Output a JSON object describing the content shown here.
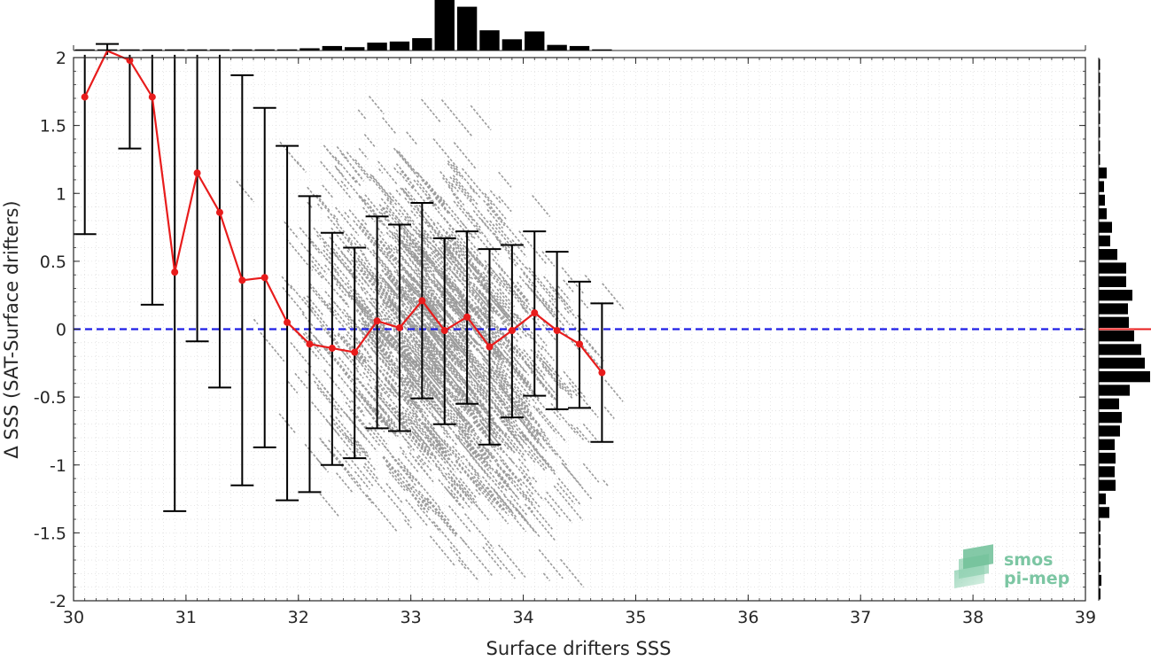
{
  "chart_data": {
    "type": "scatter",
    "xlabel": "Surface drifters SSS",
    "ylabel": "Δ SSS (SAT-Surface drifters)",
    "xlim": [
      30,
      39
    ],
    "ylim": [
      -2,
      2
    ],
    "xticks": [
      "30",
      "31",
      "32",
      "33",
      "34",
      "35",
      "36",
      "37",
      "38",
      "39"
    ],
    "yticks": [
      "-2",
      "-1.5",
      "-1",
      "-0.5",
      "0",
      "0.5",
      "1",
      "1.5",
      "2"
    ],
    "zero_line": {
      "y": 0,
      "color": "#1f1fe6",
      "style": "dashed"
    },
    "mean_series": {
      "color": "#e81c1c",
      "x": [
        30.1,
        30.3,
        30.5,
        30.7,
        30.9,
        31.1,
        31.3,
        31.5,
        31.7,
        31.9,
        32.1,
        32.3,
        32.5,
        32.7,
        32.9,
        33.1,
        33.3,
        33.5,
        33.7,
        33.9,
        34.1,
        34.3,
        34.5,
        34.7
      ],
      "y": [
        1.71,
        2.05,
        1.98,
        1.71,
        0.42,
        1.15,
        0.86,
        0.36,
        0.38,
        0.05,
        -0.11,
        -0.14,
        -0.17,
        0.06,
        0.01,
        0.21,
        -0.01,
        0.09,
        -0.13,
        -0.01,
        0.12,
        -0.01,
        -0.11,
        -0.32
      ]
    },
    "error_bars": {
      "color": "#000000",
      "low": [
        0.7,
        2.1,
        1.33,
        0.18,
        -1.34,
        -0.09,
        -0.43,
        -1.15,
        -0.87,
        -1.26,
        -1.2,
        -1.0,
        -0.95,
        -0.73,
        -0.75,
        -0.51,
        -0.7,
        -0.55,
        -0.85,
        -0.65,
        -0.49,
        -0.59,
        -0.58,
        -0.83
      ],
      "high": [
        2.1,
        2.1,
        2.1,
        2.1,
        2.1,
        2.1,
        2.1,
        1.87,
        1.63,
        1.35,
        0.98,
        0.71,
        0.6,
        0.83,
        0.77,
        0.93,
        0.67,
        0.72,
        0.59,
        0.62,
        0.72,
        0.57,
        0.35,
        0.19
      ]
    },
    "scatter_cloud": {
      "color": "#9b9b9b",
      "center_x": 33.2,
      "center_y": -0.05,
      "spread_x": 0.55,
      "spread_y": 0.6,
      "x_range": [
        31.4,
        34.8
      ],
      "trend_slope": -1.0
    },
    "top_histogram": {
      "bin_centers": [
        30.1,
        30.3,
        30.5,
        30.7,
        30.9,
        31.1,
        31.3,
        31.5,
        31.7,
        31.9,
        32.1,
        32.3,
        32.5,
        32.7,
        32.9,
        33.1,
        33.3,
        33.5,
        33.7,
        33.9,
        34.1,
        34.3,
        34.5,
        34.7
      ],
      "counts": [
        1,
        1,
        1,
        1,
        1,
        1,
        1,
        1,
        1,
        1,
        2,
        4,
        3,
        7,
        8,
        11,
        45,
        39,
        18,
        10,
        17,
        5,
        4,
        1
      ]
    },
    "right_histogram": {
      "bin_centers": [
        1.95,
        1.85,
        1.75,
        1.65,
        1.55,
        1.45,
        1.35,
        1.25,
        1.15,
        1.05,
        0.95,
        0.85,
        0.75,
        0.65,
        0.55,
        0.45,
        0.35,
        0.25,
        0.15,
        0.05,
        -0.05,
        -0.15,
        -0.25,
        -0.35,
        -0.45,
        -0.55,
        -0.65,
        -0.75,
        -0.85,
        -0.95,
        -1.05,
        -1.15,
        -1.25,
        -1.35,
        -1.45,
        -1.55,
        -1.65,
        -1.75,
        -1.85,
        -1.95
      ],
      "counts": [
        1,
        1,
        1,
        1,
        1,
        1,
        1,
        1,
        9,
        6,
        7,
        9,
        15,
        13,
        21,
        31,
        31,
        38,
        33,
        34,
        40,
        48,
        52,
        58,
        35,
        23,
        26,
        24,
        18,
        19,
        18,
        19,
        8,
        12,
        2,
        2,
        2,
        2,
        3,
        2
      ],
      "mean_line_y": 0,
      "mean_line_color": "#e81c1c"
    }
  },
  "logo": {
    "line1": "smos",
    "line2": "pi-mep"
  }
}
